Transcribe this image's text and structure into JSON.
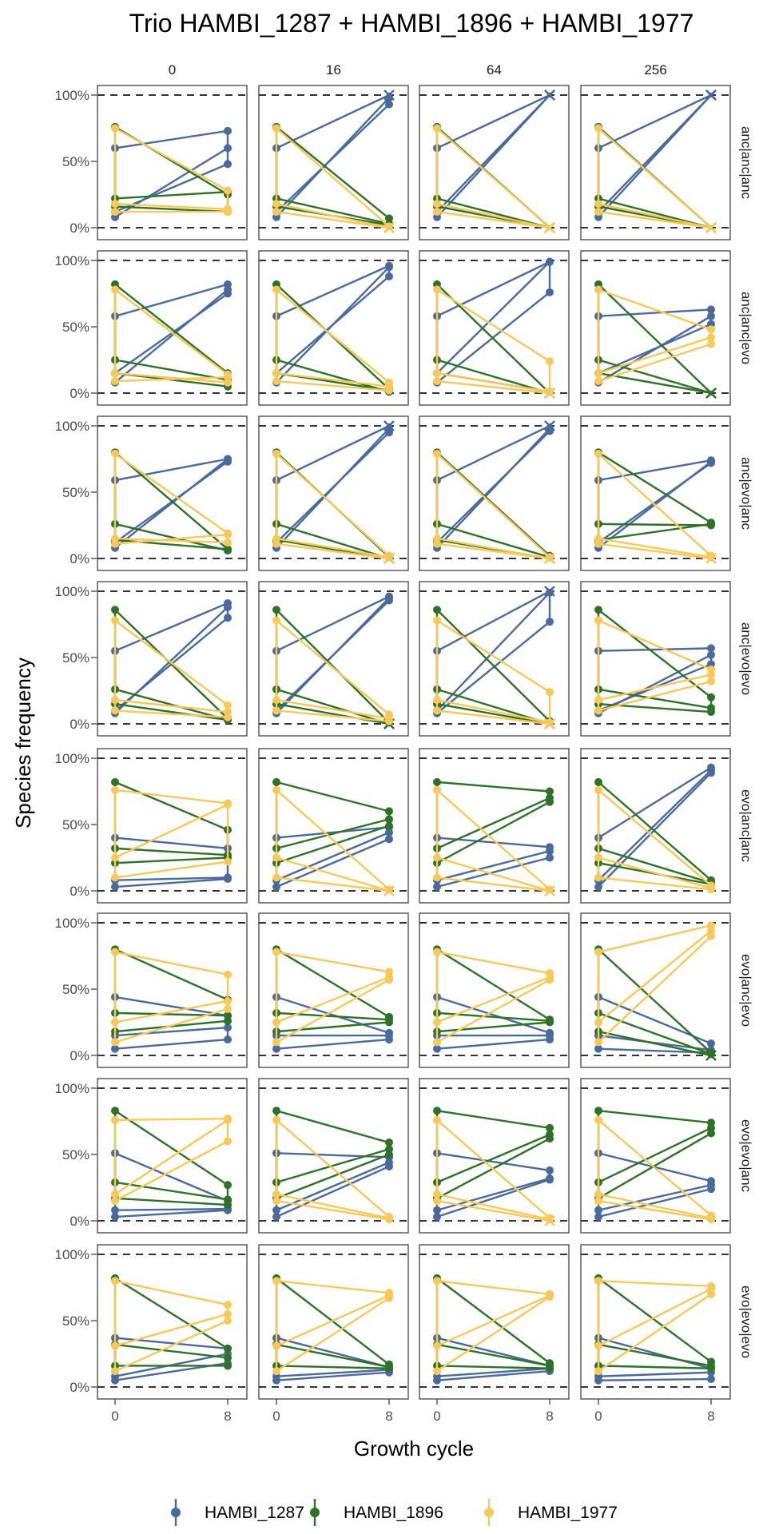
{
  "chart_data": {
    "type": "line",
    "title": "Trio HAMBI_1287 + HAMBI_1896 + HAMBI_1977",
    "xlabel": "Growth cycle",
    "ylabel": "Species frequency",
    "x_ticks": [
      0,
      8
    ],
    "y_ticks": [
      "0%",
      "50%",
      "100%"
    ],
    "ylim": [
      0,
      1
    ],
    "reference_lines": [
      0,
      1
    ],
    "facet_cols": [
      "0",
      "16",
      "64",
      "256"
    ],
    "facet_rows": [
      "anc|anc|anc",
      "anc|anc|evo",
      "anc|evo|anc",
      "anc|evo|evo",
      "evo|anc|anc",
      "evo|anc|evo",
      "evo|evo|anc",
      "evo|evo|evo"
    ],
    "legend": {
      "position": "bottom",
      "items": [
        "HAMBI_1287",
        "HAMBI_1896",
        "HAMBI_1977"
      ]
    },
    "colors": {
      "HAMBI_1287": "#4a6a9b",
      "HAMBI_1896": "#2e7228",
      "HAMBI_1977": "#f7c85a"
    },
    "start_values": [
      {
        "HAMBI_1287": [
          0.6,
          0.08,
          0.12
        ],
        "HAMBI_1896": [
          0.76,
          0.22,
          0.16
        ],
        "HAMBI_1977": [
          0.75,
          0.18,
          0.12
        ]
      },
      {
        "HAMBI_1287": [
          0.58,
          0.08,
          0.15
        ],
        "HAMBI_1896": [
          0.82,
          0.25,
          0.15
        ],
        "HAMBI_1977": [
          0.78,
          0.15,
          0.09
        ]
      },
      {
        "HAMBI_1287": [
          0.59,
          0.08,
          0.12
        ],
        "HAMBI_1896": [
          0.8,
          0.26,
          0.14
        ],
        "HAMBI_1977": [
          0.79,
          0.15,
          0.11
        ]
      },
      {
        "HAMBI_1287": [
          0.55,
          0.08,
          0.1
        ],
        "HAMBI_1896": [
          0.86,
          0.26,
          0.15
        ],
        "HAMBI_1977": [
          0.78,
          0.18,
          0.1
        ]
      },
      {
        "HAMBI_1287": [
          0.4,
          0.08,
          0.03
        ],
        "HAMBI_1896": [
          0.82,
          0.32,
          0.21
        ],
        "HAMBI_1977": [
          0.76,
          0.25,
          0.1
        ]
      },
      {
        "HAMBI_1287": [
          0.44,
          0.15,
          0.05
        ],
        "HAMBI_1896": [
          0.8,
          0.32,
          0.18
        ],
        "HAMBI_1977": [
          0.78,
          0.25,
          0.1
        ]
      },
      {
        "HAMBI_1287": [
          0.51,
          0.08,
          0.03
        ],
        "HAMBI_1896": [
          0.83,
          0.29,
          0.17
        ],
        "HAMBI_1977": [
          0.76,
          0.2,
          0.15
        ]
      },
      {
        "HAMBI_1287": [
          0.37,
          0.08,
          0.05
        ],
        "HAMBI_1896": [
          0.82,
          0.32,
          0.16
        ],
        "HAMBI_1977": [
          0.8,
          0.31,
          0.12
        ]
      }
    ],
    "end_values": [
      [
        {
          "HAMBI_1287": [
            0.73,
            0.6,
            0.48
          ],
          "HAMBI_1896": [
            0.25,
            0.27,
            0.12
          ],
          "HAMBI_1977": [
            0.28,
            0.14,
            0.12
          ]
        },
        {
          "HAMBI_1287": [
            1.0,
            0.98,
            0.93
          ],
          "HAMBI_1896": [
            0.07,
            0.03,
            0.02
          ],
          "HAMBI_1977": [
            0.01,
            0.0,
            0.0
          ]
        },
        {
          "HAMBI_1287": [
            1.0,
            1.0,
            1.0
          ],
          "HAMBI_1896": [
            0.0,
            0.0,
            0.0
          ],
          "HAMBI_1977": [
            0.0,
            0.0,
            0.0
          ]
        },
        {
          "HAMBI_1287": [
            1.0,
            1.0,
            1.0
          ],
          "HAMBI_1896": [
            0.0,
            0.0,
            0.0
          ],
          "HAMBI_1977": [
            0.0,
            0.0,
            0.0
          ]
        }
      ],
      [
        {
          "HAMBI_1287": [
            0.82,
            0.78,
            0.75
          ],
          "HAMBI_1896": [
            0.15,
            0.1,
            0.05
          ],
          "HAMBI_1977": [
            0.14,
            0.08,
            0.12
          ]
        },
        {
          "HAMBI_1287": [
            0.96,
            0.95,
            0.88
          ],
          "HAMBI_1896": [
            0.03,
            0.01,
            0.02
          ],
          "HAMBI_1977": [
            0.08,
            0.05,
            0.02
          ]
        },
        {
          "HAMBI_1287": [
            0.99,
            0.76,
            0.99
          ],
          "HAMBI_1896": [
            0.0,
            0.0,
            0.01
          ],
          "HAMBI_1977": [
            0.24,
            0.01,
            0.0
          ]
        },
        {
          "HAMBI_1287": [
            0.63,
            0.58,
            0.52
          ],
          "HAMBI_1896": [
            0.0,
            0.0,
            0.0
          ],
          "HAMBI_1977": [
            0.48,
            0.42,
            0.37
          ]
        }
      ],
      [
        {
          "HAMBI_1287": [
            0.75,
            0.75,
            0.73
          ],
          "HAMBI_1896": [
            0.07,
            0.06,
            0.07
          ],
          "HAMBI_1977": [
            0.19,
            0.12,
            0.18
          ]
        },
        {
          "HAMBI_1287": [
            1.0,
            0.98,
            0.95
          ],
          "HAMBI_1896": [
            0.01,
            0.0,
            0.0
          ],
          "HAMBI_1977": [
            0.02,
            0.01,
            0.0
          ]
        },
        {
          "HAMBI_1287": [
            1.0,
            0.98,
            0.96
          ],
          "HAMBI_1896": [
            0.02,
            0.01,
            0.0
          ],
          "HAMBI_1977": [
            0.01,
            0.0,
            0.0
          ]
        },
        {
          "HAMBI_1287": [
            0.74,
            0.73,
            0.72
          ],
          "HAMBI_1896": [
            0.27,
            0.25,
            0.26
          ],
          "HAMBI_1977": [
            0.02,
            0.01,
            0.0
          ]
        }
      ],
      [
        {
          "HAMBI_1287": [
            0.91,
            0.88,
            0.8
          ],
          "HAMBI_1896": [
            0.04,
            0.03,
            0.03
          ],
          "HAMBI_1977": [
            0.14,
            0.09,
            0.05
          ]
        },
        {
          "HAMBI_1287": [
            0.96,
            0.95,
            0.93
          ],
          "HAMBI_1896": [
            0.01,
            0.0,
            0.0
          ],
          "HAMBI_1977": [
            0.07,
            0.04,
            0.02
          ]
        },
        {
          "HAMBI_1287": [
            1.0,
            0.77,
            0.99
          ],
          "HAMBI_1896": [
            0.02,
            0.0,
            0.0
          ],
          "HAMBI_1977": [
            0.24,
            0.01,
            0.0
          ]
        },
        {
          "HAMBI_1287": [
            0.57,
            0.52,
            0.45
          ],
          "HAMBI_1896": [
            0.2,
            0.12,
            0.09
          ],
          "HAMBI_1977": [
            0.41,
            0.37,
            0.32
          ]
        }
      ],
      [
        {
          "HAMBI_1287": [
            0.32,
            0.1,
            0.09
          ],
          "HAMBI_1896": [
            0.46,
            0.27,
            0.25
          ],
          "HAMBI_1977": [
            0.66,
            0.65,
            0.22
          ]
        },
        {
          "HAMBI_1287": [
            0.48,
            0.44,
            0.39
          ],
          "HAMBI_1896": [
            0.6,
            0.54,
            0.49
          ],
          "HAMBI_1977": [
            0.01,
            0.0,
            0.0
          ]
        },
        {
          "HAMBI_1287": [
            0.33,
            0.3,
            0.25
          ],
          "HAMBI_1896": [
            0.75,
            0.7,
            0.67
          ],
          "HAMBI_1977": [
            0.01,
            0.0,
            0.0
          ]
        },
        {
          "HAMBI_1287": [
            0.93,
            0.91,
            0.89
          ],
          "HAMBI_1896": [
            0.08,
            0.06,
            0.05
          ],
          "HAMBI_1977": [
            0.04,
            0.02,
            0.01
          ]
        }
      ],
      [
        {
          "HAMBI_1287": [
            0.3,
            0.21,
            0.12
          ],
          "HAMBI_1896": [
            0.42,
            0.3,
            0.26
          ],
          "HAMBI_1977": [
            0.61,
            0.41,
            0.35
          ]
        },
        {
          "HAMBI_1287": [
            0.17,
            0.15,
            0.12
          ],
          "HAMBI_1896": [
            0.29,
            0.27,
            0.25
          ],
          "HAMBI_1977": [
            0.63,
            0.59,
            0.57
          ]
        },
        {
          "HAMBI_1287": [
            0.17,
            0.15,
            0.12
          ],
          "HAMBI_1896": [
            0.27,
            0.26,
            0.25
          ],
          "HAMBI_1977": [
            0.62,
            0.59,
            0.57
          ]
        },
        {
          "HAMBI_1287": [
            0.09,
            0.04,
            0.02
          ],
          "HAMBI_1896": [
            0.02,
            0.01,
            0.0
          ],
          "HAMBI_1977": [
            0.98,
            0.94,
            0.9
          ]
        }
      ],
      [
        {
          "HAMBI_1287": [
            0.15,
            0.09,
            0.08
          ],
          "HAMBI_1896": [
            0.27,
            0.16,
            0.12
          ],
          "HAMBI_1977": [
            0.77,
            0.76,
            0.6
          ]
        },
        {
          "HAMBI_1287": [
            0.48,
            0.44,
            0.41
          ],
          "HAMBI_1896": [
            0.59,
            0.54,
            0.5
          ],
          "HAMBI_1977": [
            0.03,
            0.02,
            0.01
          ]
        },
        {
          "HAMBI_1287": [
            0.38,
            0.32,
            0.31
          ],
          "HAMBI_1896": [
            0.7,
            0.65,
            0.62
          ],
          "HAMBI_1977": [
            0.02,
            0.01,
            0.0
          ]
        },
        {
          "HAMBI_1287": [
            0.3,
            0.27,
            0.24
          ],
          "HAMBI_1896": [
            0.74,
            0.7,
            0.66
          ],
          "HAMBI_1977": [
            0.04,
            0.02,
            0.01
          ]
        }
      ],
      [
        {
          "HAMBI_1287": [
            0.29,
            0.25,
            0.18
          ],
          "HAMBI_1896": [
            0.29,
            0.22,
            0.16
          ],
          "HAMBI_1977": [
            0.62,
            0.55,
            0.5
          ]
        },
        {
          "HAMBI_1287": [
            0.15,
            0.13,
            0.11
          ],
          "HAMBI_1896": [
            0.17,
            0.15,
            0.14
          ],
          "HAMBI_1977": [
            0.71,
            0.69,
            0.67
          ]
        },
        {
          "HAMBI_1287": [
            0.16,
            0.14,
            0.12
          ],
          "HAMBI_1896": [
            0.18,
            0.16,
            0.14
          ],
          "HAMBI_1977": [
            0.7,
            0.69,
            0.68
          ]
        },
        {
          "HAMBI_1287": [
            0.14,
            0.11,
            0.06
          ],
          "HAMBI_1896": [
            0.19,
            0.16,
            0.14
          ],
          "HAMBI_1977": [
            0.76,
            0.74,
            0.7
          ]
        }
      ]
    ]
  }
}
